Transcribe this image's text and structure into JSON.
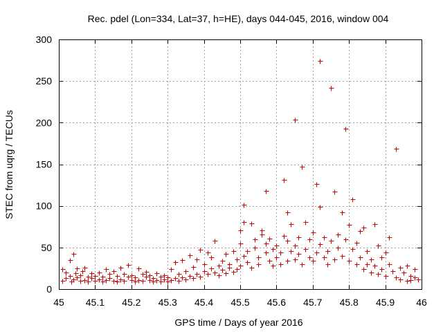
{
  "chart_data": {
    "type": "scatter",
    "title": "Rec. pdel (Lon=334, Lat=37, h=HE), days 044-045, 2016, window 004",
    "xlabel": "GPS time / Days of year 2016",
    "ylabel": "STEC from uqrg / TECUs",
    "xlim": [
      45,
      46
    ],
    "ylim": [
      0,
      300
    ],
    "xticks": [
      "45",
      "45.1",
      "45.2",
      "45.3",
      "45.4",
      "45.5",
      "45.6",
      "45.7",
      "45.8",
      "45.9",
      "46"
    ],
    "yticks": [
      "0",
      "50",
      "100",
      "150",
      "200",
      "250",
      "300"
    ],
    "grid": true,
    "marker": "+",
    "color": "#cc0000",
    "series": [
      {
        "name": "STEC",
        "points": [
          [
            45.01,
            10
          ],
          [
            45.01,
            24
          ],
          [
            45.02,
            13
          ],
          [
            45.02,
            20
          ],
          [
            45.03,
            35
          ],
          [
            45.03,
            16
          ],
          [
            45.035,
            9
          ],
          [
            45.04,
            42
          ],
          [
            45.04,
            12
          ],
          [
            45.045,
            19
          ],
          [
            45.05,
            25
          ],
          [
            45.05,
            14
          ],
          [
            45.06,
            10
          ],
          [
            45.06,
            17
          ],
          [
            45.065,
            22
          ],
          [
            45.07,
            11
          ],
          [
            45.07,
            26
          ],
          [
            45.08,
            15
          ],
          [
            45.08,
            9
          ],
          [
            45.09,
            19
          ],
          [
            45.09,
            13
          ],
          [
            45.1,
            10
          ],
          [
            45.1,
            16
          ],
          [
            45.11,
            12
          ],
          [
            45.11,
            20
          ],
          [
            45.12,
            9
          ],
          [
            45.12,
            15
          ],
          [
            45.13,
            24
          ],
          [
            45.13,
            11
          ],
          [
            45.14,
            18
          ],
          [
            45.14,
            13
          ],
          [
            45.15,
            10
          ],
          [
            45.15,
            22
          ],
          [
            45.16,
            16
          ],
          [
            45.16,
            9
          ],
          [
            45.17,
            26
          ],
          [
            45.17,
            12
          ],
          [
            45.18,
            18
          ],
          [
            45.18,
            10
          ],
          [
            45.19,
            29
          ],
          [
            45.19,
            15
          ],
          [
            45.2,
            11
          ],
          [
            45.2,
            17
          ],
          [
            45.21,
            9
          ],
          [
            45.21,
            14
          ],
          [
            45.22,
            25
          ],
          [
            45.22,
            11
          ],
          [
            45.23,
            18
          ],
          [
            45.23,
            10
          ],
          [
            45.24,
            15
          ],
          [
            45.24,
            21
          ],
          [
            45.25,
            11
          ],
          [
            45.25,
            17
          ],
          [
            45.26,
            9
          ],
          [
            45.26,
            13
          ],
          [
            45.27,
            19
          ],
          [
            45.27,
            11
          ],
          [
            45.28,
            15
          ],
          [
            45.28,
            9
          ],
          [
            45.29,
            17
          ],
          [
            45.29,
            12
          ],
          [
            45.3,
            9
          ],
          [
            45.3,
            14
          ],
          [
            45.31,
            11
          ],
          [
            45.31,
            24
          ],
          [
            45.32,
            13
          ],
          [
            45.32,
            32
          ],
          [
            45.33,
            10
          ],
          [
            45.33,
            18
          ],
          [
            45.34,
            35
          ],
          [
            45.34,
            14
          ],
          [
            45.35,
            12
          ],
          [
            45.35,
            22
          ],
          [
            45.36,
            41
          ],
          [
            45.36,
            16
          ],
          [
            45.37,
            13
          ],
          [
            45.37,
            27
          ],
          [
            45.38,
            36
          ],
          [
            45.38,
            18
          ],
          [
            45.39,
            47
          ],
          [
            45.39,
            15
          ],
          [
            45.4,
            22
          ],
          [
            45.4,
            30
          ],
          [
            45.41,
            44
          ],
          [
            45.41,
            18
          ],
          [
            45.42,
            25
          ],
          [
            45.42,
            38
          ],
          [
            45.43,
            20
          ],
          [
            45.43,
            58
          ],
          [
            45.44,
            28
          ],
          [
            45.44,
            17
          ],
          [
            45.45,
            34
          ],
          [
            45.45,
            23
          ],
          [
            45.46,
            42
          ],
          [
            45.46,
            19
          ],
          [
            45.47,
            30
          ],
          [
            45.47,
            26
          ],
          [
            45.48,
            46
          ],
          [
            45.48,
            21
          ],
          [
            45.49,
            36
          ],
          [
            45.49,
            24
          ],
          [
            45.5,
            55
          ],
          [
            45.5,
            28
          ],
          [
            45.5,
            71
          ],
          [
            45.51,
            40
          ],
          [
            45.51,
            101
          ],
          [
            45.51,
            81
          ],
          [
            45.52,
            32
          ],
          [
            45.52,
            46
          ],
          [
            45.53,
            79
          ],
          [
            45.53,
            26
          ],
          [
            45.54,
            60
          ],
          [
            45.54,
            50
          ],
          [
            45.55,
            38
          ],
          [
            45.55,
            30
          ],
          [
            45.56,
            71
          ],
          [
            45.56,
            66
          ],
          [
            45.57,
            118
          ],
          [
            45.57,
            44
          ],
          [
            45.57,
            55
          ],
          [
            45.58,
            34
          ],
          [
            45.58,
            61
          ],
          [
            45.59,
            48
          ],
          [
            45.59,
            28
          ],
          [
            45.6,
            38
          ],
          [
            45.6,
            52
          ],
          [
            45.61,
            44
          ],
          [
            45.61,
            30
          ],
          [
            45.62,
            131
          ],
          [
            45.62,
            64
          ],
          [
            45.63,
            58
          ],
          [
            45.63,
            34
          ],
          [
            45.63,
            92
          ],
          [
            45.64,
            46
          ],
          [
            45.64,
            78
          ],
          [
            45.65,
            204
          ],
          [
            45.65,
            36
          ],
          [
            45.65,
            52
          ],
          [
            45.66,
            62
          ],
          [
            45.66,
            42
          ],
          [
            45.67,
            147
          ],
          [
            45.67,
            30
          ],
          [
            45.68,
            81
          ],
          [
            45.68,
            48
          ],
          [
            45.69,
            38
          ],
          [
            45.69,
            60
          ],
          [
            45.7,
            34
          ],
          [
            45.7,
            68
          ],
          [
            45.71,
            126
          ],
          [
            45.71,
            44
          ],
          [
            45.72,
            274
          ],
          [
            45.72,
            99
          ],
          [
            45.72,
            54
          ],
          [
            45.73,
            38
          ],
          [
            45.73,
            62
          ],
          [
            45.74,
            30
          ],
          [
            45.74,
            46
          ],
          [
            45.75,
            242
          ],
          [
            45.75,
            58
          ],
          [
            45.76,
            36
          ],
          [
            45.76,
            117
          ],
          [
            45.77,
            50
          ],
          [
            45.77,
            66
          ],
          [
            45.78,
            92
          ],
          [
            45.78,
            40
          ],
          [
            45.79,
            60
          ],
          [
            45.79,
            193
          ],
          [
            45.8,
            34
          ],
          [
            45.8,
            77
          ],
          [
            45.81,
            48
          ],
          [
            45.81,
            108
          ],
          [
            45.82,
            30
          ],
          [
            45.82,
            56
          ],
          [
            45.83,
            70
          ],
          [
            45.83,
            38
          ],
          [
            45.84,
            74
          ],
          [
            45.84,
            24
          ],
          [
            45.85,
            46
          ],
          [
            45.85,
            30
          ],
          [
            45.86,
            36
          ],
          [
            45.86,
            20
          ],
          [
            45.87,
            78
          ],
          [
            45.87,
            28
          ],
          [
            45.88,
            52
          ],
          [
            45.88,
            18
          ],
          [
            45.89,
            38
          ],
          [
            45.89,
            24
          ],
          [
            45.9,
            44
          ],
          [
            45.9,
            16
          ],
          [
            45.91,
            62
          ],
          [
            45.91,
            30
          ],
          [
            45.92,
            22
          ],
          [
            45.93,
            169
          ],
          [
            45.93,
            14
          ],
          [
            45.94,
            26
          ],
          [
            45.94,
            12
          ],
          [
            45.95,
            20
          ],
          [
            45.96,
            10
          ],
          [
            45.96,
            28
          ],
          [
            45.97,
            16
          ],
          [
            45.97,
            11
          ],
          [
            45.98,
            24
          ],
          [
            45.98,
            14
          ],
          [
            45.99,
            12
          ]
        ]
      }
    ]
  }
}
